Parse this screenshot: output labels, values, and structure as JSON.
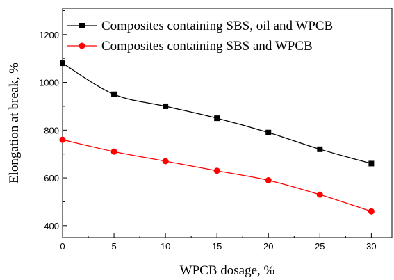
{
  "chart_data": {
    "type": "line",
    "xlabel": "WPCB dosage, %",
    "ylabel": "Elongation at break, %",
    "xlim": [
      0,
      32
    ],
    "ylim": [
      350,
      1310
    ],
    "x_ticks": [
      0,
      5,
      10,
      15,
      20,
      25,
      30
    ],
    "y_ticks": [
      400,
      600,
      800,
      1000,
      1200
    ],
    "legend_position": "top-right",
    "grid": false,
    "series": [
      {
        "name": "Composites containing SBS, oil and WPCB",
        "color": "#000000",
        "marker": "square",
        "x": [
          0,
          5,
          10,
          15,
          20,
          25,
          30
        ],
        "y": [
          1080,
          950,
          900,
          850,
          790,
          720,
          660
        ]
      },
      {
        "name": "Composites containing SBS and WPCB",
        "color": "#ff0000",
        "marker": "circle",
        "x": [
          0,
          5,
          10,
          15,
          20,
          25,
          30
        ],
        "y": [
          760,
          710,
          670,
          630,
          590,
          530,
          460
        ]
      }
    ]
  }
}
